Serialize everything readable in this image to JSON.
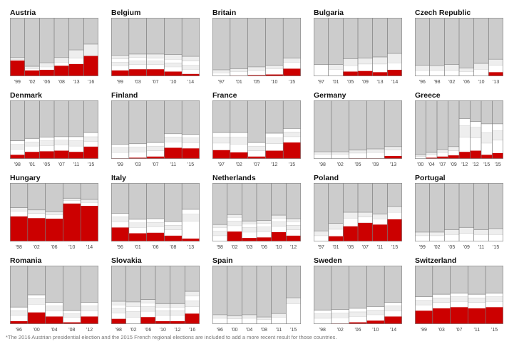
{
  "colors": {
    "far_right": "#cc0000",
    "others": "#cccccc",
    "minor": "#ffffff",
    "minor_b": "#eeeeee",
    "divider": "#7a7a7a"
  },
  "footnote": "*The 2016 Austrian presidential election and the 2015 French regional elections are included to add a more recent result for those countries.",
  "chart_data": [
    {
      "country": "Austria",
      "type": "stacked-column",
      "years": [
        "'99",
        "'02",
        "'06",
        "'08",
        "'13",
        "'16"
      ],
      "far_right": [
        27,
        10,
        11,
        18,
        21,
        35
      ],
      "minor": [
        [
          2,
          3
        ],
        [
          3,
          4
        ],
        [
          5,
          7
        ],
        [
          6,
          8
        ],
        [
          10,
          14
        ],
        [
          0,
          20
        ]
      ]
    },
    {
      "country": "Belgium",
      "type": "stacked-column",
      "years": [
        "'99",
        "'03",
        "'07",
        "'10",
        "'14"
      ],
      "far_right": [
        10,
        12,
        12,
        8,
        4
      ],
      "minor": [
        [
          8,
          6,
          6,
          6
        ],
        [
          8,
          6,
          6,
          6
        ],
        [
          8,
          6,
          5,
          7
        ],
        [
          8,
          7,
          6,
          8
        ],
        [
          8,
          7,
          7,
          8
        ]
      ]
    },
    {
      "country": "Britain",
      "type": "stacked-column",
      "years": [
        "'97",
        "'01",
        "'05",
        "'10",
        "'15"
      ],
      "far_right": [
        0,
        1,
        2,
        3,
        13
      ],
      "minor": [
        [
          6,
          5
        ],
        [
          7,
          5
        ],
        [
          8,
          6
        ],
        [
          10,
          6
        ],
        [
          11,
          7
        ]
      ]
    },
    {
      "country": "Bulgaria",
      "type": "stacked-column",
      "years": [
        "'97",
        "'01",
        "'05",
        "'09",
        "'13",
        "'14"
      ],
      "far_right": [
        0,
        0,
        8,
        9,
        7,
        11
      ],
      "minor": [
        [
          20,
          0
        ],
        [
          12,
          8
        ],
        [
          10,
          12
        ],
        [
          12,
          10
        ],
        [
          14,
          12
        ],
        [
          12,
          16
        ]
      ]
    },
    {
      "country": "Czech Republic",
      "type": "stacked-column",
      "years": [
        "'96",
        "'98",
        "'02",
        "'06",
        "'10",
        "'13"
      ],
      "far_right": [
        0,
        0,
        0,
        0,
        0,
        7
      ],
      "minor": [
        [
          10,
          9
        ],
        [
          10,
          8
        ],
        [
          10,
          10
        ],
        [
          8,
          6
        ],
        [
          12,
          10
        ],
        [
          12,
          10
        ]
      ]
    },
    {
      "country": "Denmark",
      "type": "stacked-column",
      "years": [
        "'98",
        "'01",
        "'05",
        "'07",
        "'11",
        "'15"
      ],
      "far_right": [
        7,
        12,
        13,
        14,
        12,
        21
      ],
      "minor": [
        [
          10,
          8,
          6
        ],
        [
          10,
          7,
          6
        ],
        [
          10,
          8,
          6
        ],
        [
          10,
          8,
          6
        ],
        [
          10,
          9,
          7
        ],
        [
          9,
          8,
          7
        ]
      ]
    },
    {
      "country": "Finland",
      "type": "stacked-column",
      "years": [
        "'99",
        "'03",
        "'07",
        "'11",
        "'15"
      ],
      "far_right": [
        1,
        2,
        4,
        19,
        18
      ],
      "minor": [
        [
          10,
          8,
          6
        ],
        [
          10,
          8,
          6
        ],
        [
          10,
          8,
          6
        ],
        [
          10,
          8,
          6
        ],
        [
          10,
          8,
          6
        ]
      ]
    },
    {
      "country": "France",
      "type": "stacked-column",
      "years": [
        "'97",
        "'02",
        "'07",
        "'12",
        "'15"
      ],
      "far_right": [
        15,
        11,
        4,
        14,
        28
      ],
      "minor": [
        [
          12,
          10,
          8
        ],
        [
          14,
          12,
          8
        ],
        [
          10,
          8,
          6
        ],
        [
          12,
          10,
          8
        ],
        [
          10,
          8,
          6
        ]
      ]
    },
    {
      "country": "Germany",
      "type": "stacked-column",
      "years": [
        "'98",
        "'02",
        "'05",
        "'09",
        "'13"
      ],
      "far_right": [
        0,
        0,
        1,
        1,
        5
      ],
      "minor": [
        [
          8,
          4
        ],
        [
          8,
          4
        ],
        [
          9,
          5
        ],
        [
          10,
          6
        ],
        [
          10,
          6
        ]
      ]
    },
    {
      "country": "Greece",
      "type": "stacked-column",
      "years": [
        "'00",
        "'04",
        "'07",
        "'09",
        "'12",
        "'12",
        "'15",
        "'15"
      ],
      "far_right": [
        0,
        2,
        4,
        6,
        12,
        14,
        7,
        10
      ],
      "minor": [
        [
          4,
          3
        ],
        [
          5,
          4
        ],
        [
          7,
          5
        ],
        [
          8,
          7
        ],
        [
          25,
          20,
          12
        ],
        [
          22,
          18,
          10
        ],
        [
          20,
          18,
          15
        ],
        [
          22,
          16,
          12
        ]
      ]
    },
    {
      "country": "Hungary",
      "type": "stacked-column",
      "years": [
        "'98",
        "'02",
        "'06",
        "'10",
        "'14"
      ],
      "far_right": [
        43,
        40,
        39,
        65,
        61
      ],
      "minor": [
        [
          9,
          6
        ],
        [
          8,
          6
        ],
        [
          7,
          5
        ],
        [
          5,
          4
        ],
        [
          6,
          5
        ]
      ]
    },
    {
      "country": "Italy",
      "type": "stacked-column",
      "years": [
        "'96",
        "'01",
        "'06",
        "'08",
        "'13"
      ],
      "far_right": [
        24,
        14,
        15,
        10,
        5
      ],
      "minor": [
        [
          10,
          8,
          6
        ],
        [
          10,
          8,
          6
        ],
        [
          10,
          8,
          6
        ],
        [
          10,
          8,
          6
        ],
        [
          30,
          12,
          8
        ]
      ]
    },
    {
      "country": "Netherlands",
      "type": "stacked-column",
      "years": [
        "'98",
        "'02",
        "'03",
        "'06",
        "'10",
        "'12"
      ],
      "far_right": [
        0,
        17,
        6,
        7,
        16,
        10
      ],
      "minor": [
        [
          10,
          8,
          6,
          5
        ],
        [
          10,
          8,
          6,
          5
        ],
        [
          10,
          8,
          6,
          5
        ],
        [
          10,
          8,
          6,
          5
        ],
        [
          10,
          8,
          6,
          5
        ],
        [
          10,
          8,
          6,
          5
        ]
      ]
    },
    {
      "country": "Poland",
      "type": "stacked-column",
      "years": [
        "'97",
        "'01",
        "'05",
        "'07",
        "'11",
        "'15"
      ],
      "far_right": [
        0,
        9,
        26,
        32,
        29,
        38
      ],
      "minor": [
        [
          10,
          8
        ],
        [
          12,
          10
        ],
        [
          14,
          10
        ],
        [
          10,
          8
        ],
        [
          10,
          8
        ],
        [
          12,
          10
        ]
      ]
    },
    {
      "country": "Portugal",
      "type": "stacked-column",
      "years": [
        "'99",
        "'02",
        "'05",
        "'09",
        "'11",
        "'15"
      ],
      "far_right": [
        0,
        0,
        0,
        0,
        0,
        0
      ],
      "minor": [
        [
          10,
          6
        ],
        [
          10,
          6
        ],
        [
          12,
          8
        ],
        [
          14,
          10
        ],
        [
          12,
          8
        ],
        [
          12,
          10
        ]
      ]
    },
    {
      "country": "Romania",
      "type": "stacked-column",
      "years": [
        "'96",
        "'00",
        "'04",
        "'08",
        "'12"
      ],
      "far_right": [
        5,
        20,
        13,
        3,
        13
      ],
      "minor": [
        [
          10,
          8,
          6
        ],
        [
          14,
          10,
          6
        ],
        [
          10,
          8,
          6
        ],
        [
          9,
          6,
          5
        ],
        [
          10,
          8,
          6
        ]
      ]
    },
    {
      "country": "Slovakia",
      "type": "stacked-column",
      "years": [
        "'98",
        "'02",
        "'06",
        "'10",
        "'12",
        "'16"
      ],
      "far_right": [
        9,
        0,
        12,
        5,
        5,
        18
      ],
      "minor": [
        [
          10,
          8,
          6,
          6
        ],
        [
          12,
          10,
          8,
          8
        ],
        [
          10,
          8,
          6,
          6
        ],
        [
          10,
          8,
          6,
          6
        ],
        [
          10,
          8,
          6,
          6
        ],
        [
          12,
          10,
          8,
          8
        ]
      ]
    },
    {
      "country": "Spain",
      "type": "stacked-column",
      "years": [
        "'96",
        "'00",
        "'04",
        "'08",
        "'11",
        "'15"
      ],
      "far_right": [
        0,
        0,
        0,
        0,
        0,
        0
      ],
      "minor": [
        [
          10,
          6
        ],
        [
          9,
          5
        ],
        [
          10,
          6
        ],
        [
          8,
          4
        ],
        [
          12,
          6
        ],
        [
          35,
          10
        ]
      ]
    },
    {
      "country": "Sweden",
      "type": "stacked-column",
      "years": [
        "'98",
        "'02",
        "'06",
        "'10",
        "'14"
      ],
      "far_right": [
        0,
        1,
        3,
        6,
        13
      ],
      "minor": [
        [
          10,
          8,
          6
        ],
        [
          10,
          8,
          6
        ],
        [
          10,
          8,
          6
        ],
        [
          10,
          8,
          6
        ],
        [
          10,
          8,
          6
        ]
      ]
    },
    {
      "country": "Switzerland",
      "type": "stacked-column",
      "years": [
        "'99",
        "'03",
        "'07",
        "'11",
        "'15"
      ],
      "far_right": [
        23,
        27,
        29,
        27,
        29
      ],
      "minor": [
        [
          10,
          8,
          6
        ],
        [
          10,
          8,
          6
        ],
        [
          10,
          8,
          6
        ],
        [
          10,
          8,
          6
        ],
        [
          10,
          8,
          6
        ]
      ]
    }
  ]
}
